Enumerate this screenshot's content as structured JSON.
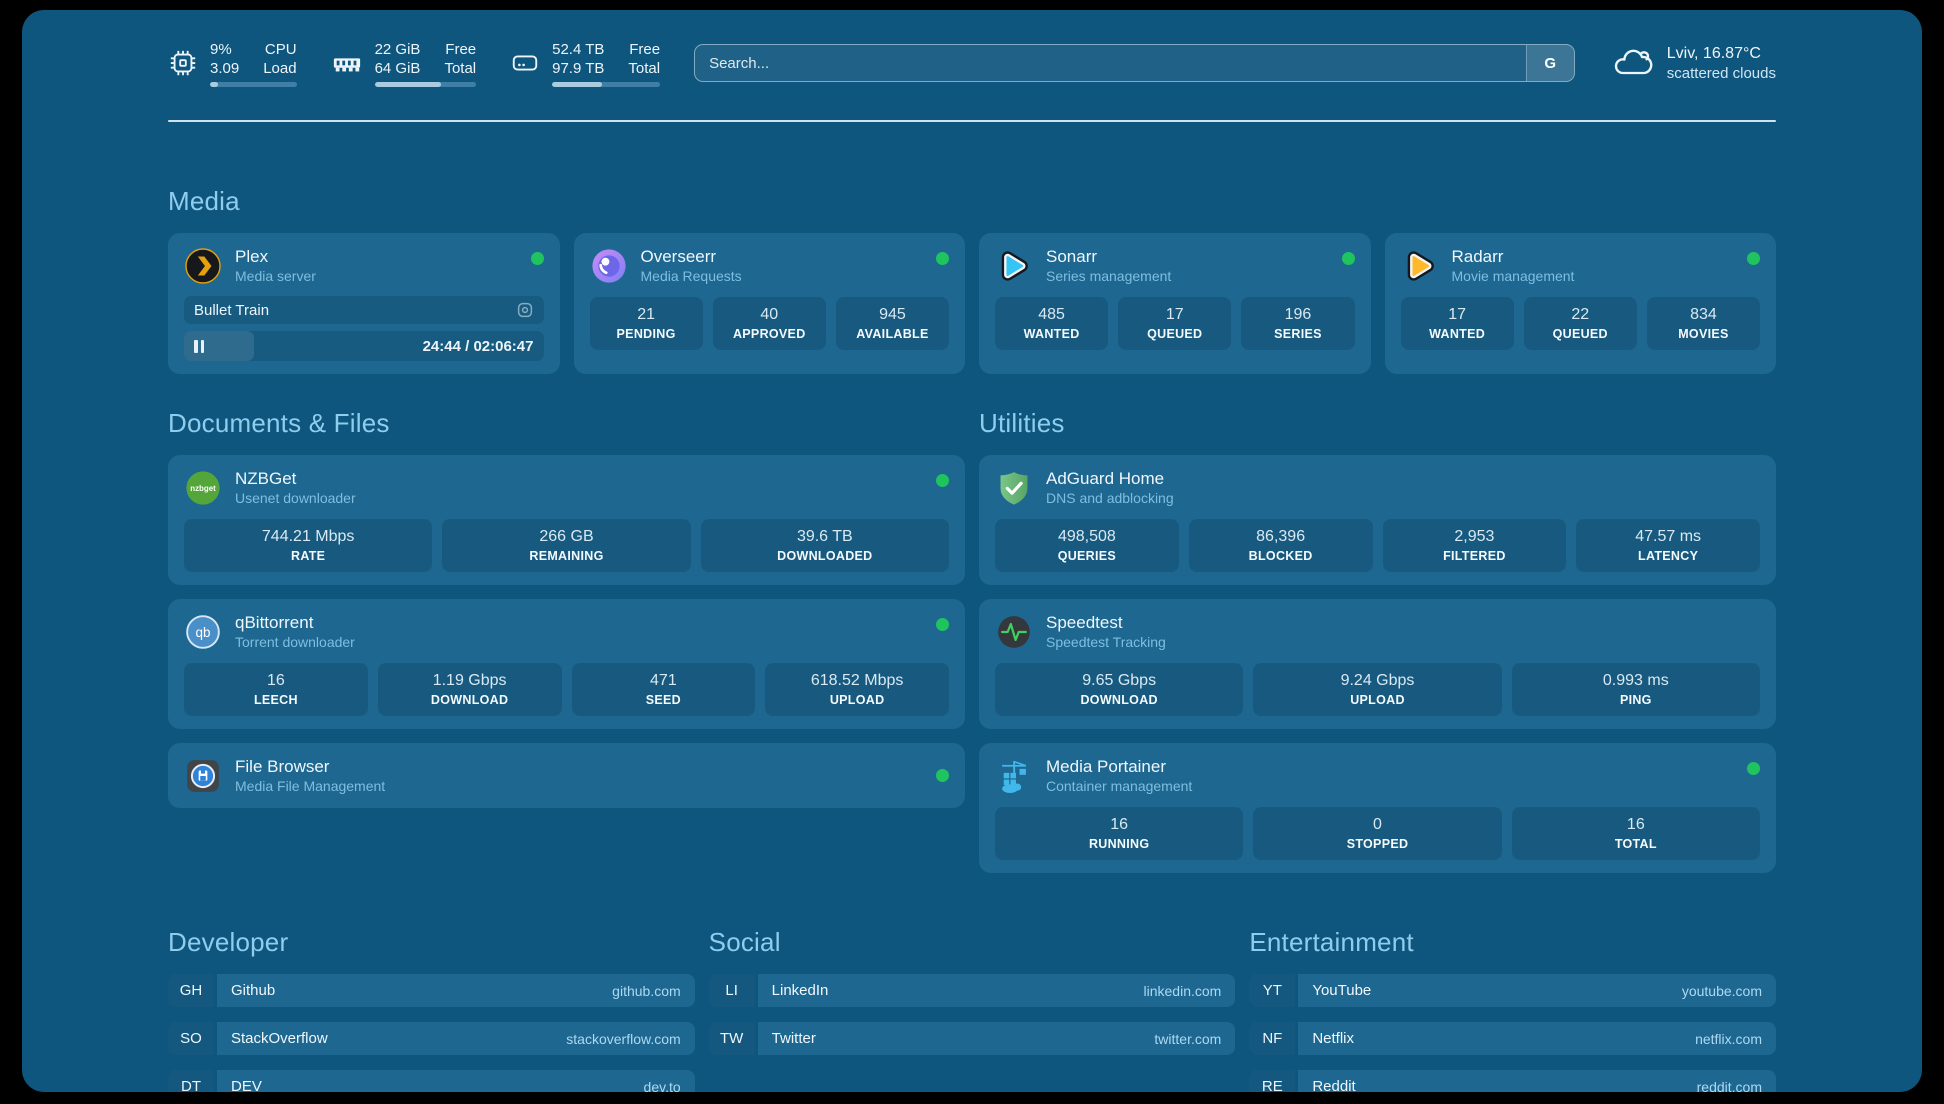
{
  "header": {
    "stats": [
      {
        "values": [
          "9%",
          "3.09"
        ],
        "labels": [
          "CPU",
          "Load"
        ],
        "progress": 9
      },
      {
        "values": [
          "22 GiB",
          "64 GiB"
        ],
        "labels": [
          "Free",
          "Total"
        ],
        "progress": 65
      },
      {
        "values": [
          "52.4 TB",
          "97.9 TB"
        ],
        "labels": [
          "Free",
          "Total"
        ],
        "progress": 46
      }
    ],
    "search": {
      "placeholder": "Search...",
      "button_label": "G"
    },
    "weather": {
      "summary": "Lviv, 16.87°C",
      "condition": "scattered clouds"
    }
  },
  "media": {
    "title": "Media",
    "plex": {
      "name": "Plex",
      "subtitle": "Media server",
      "now_playing": "Bullet Train",
      "time": "24:44 / 02:06:47",
      "progress": 19.5
    },
    "overseerr": {
      "name": "Overseerr",
      "subtitle": "Media Requests",
      "stats": [
        {
          "value": "21",
          "label": "PENDING"
        },
        {
          "value": "40",
          "label": "APPROVED"
        },
        {
          "value": "945",
          "label": "AVAILABLE"
        }
      ]
    },
    "sonarr": {
      "name": "Sonarr",
      "subtitle": "Series management",
      "stats": [
        {
          "value": "485",
          "label": "WANTED"
        },
        {
          "value": "17",
          "label": "QUEUED"
        },
        {
          "value": "196",
          "label": "SERIES"
        }
      ]
    },
    "radarr": {
      "name": "Radarr",
      "subtitle": "Movie management",
      "stats": [
        {
          "value": "17",
          "label": "WANTED"
        },
        {
          "value": "22",
          "label": "QUEUED"
        },
        {
          "value": "834",
          "label": "MOVIES"
        }
      ]
    }
  },
  "documents": {
    "title": "Documents & Files",
    "nzbget": {
      "name": "NZBGet",
      "subtitle": "Usenet downloader",
      "stats": [
        {
          "value": "744.21 Mbps",
          "label": "RATE"
        },
        {
          "value": "266 GB",
          "label": "REMAINING"
        },
        {
          "value": "39.6 TB",
          "label": "DOWNLOADED"
        }
      ]
    },
    "qbittorrent": {
      "name": "qBittorrent",
      "subtitle": "Torrent downloader",
      "stats": [
        {
          "value": "16",
          "label": "LEECH"
        },
        {
          "value": "1.19 Gbps",
          "label": "DOWNLOAD"
        },
        {
          "value": "471",
          "label": "SEED"
        },
        {
          "value": "618.52 Mbps",
          "label": "UPLOAD"
        }
      ]
    },
    "filebrowser": {
      "name": "File Browser",
      "subtitle": "Media File Management"
    }
  },
  "utilities": {
    "title": "Utilities",
    "adguard": {
      "name": "AdGuard Home",
      "subtitle": "DNS and adblocking",
      "stats": [
        {
          "value": "498,508",
          "label": "QUERIES"
        },
        {
          "value": "86,396",
          "label": "BLOCKED"
        },
        {
          "value": "2,953",
          "label": "FILTERED"
        },
        {
          "value": "47.57 ms",
          "label": "LATENCY"
        }
      ]
    },
    "speedtest": {
      "name": "Speedtest",
      "subtitle": "Speedtest Tracking",
      "stats": [
        {
          "value": "9.65 Gbps",
          "label": "DOWNLOAD"
        },
        {
          "value": "9.24 Gbps",
          "label": "UPLOAD"
        },
        {
          "value": "0.993 ms",
          "label": "PING"
        }
      ]
    },
    "portainer": {
      "name": "Media Portainer",
      "subtitle": "Container management",
      "stats": [
        {
          "value": "16",
          "label": "RUNNING"
        },
        {
          "value": "0",
          "label": "STOPPED"
        },
        {
          "value": "16",
          "label": "TOTAL"
        }
      ]
    }
  },
  "links": {
    "developer": {
      "title": "Developer",
      "items": [
        {
          "abbr": "GH",
          "name": "Github",
          "url": "github.com"
        },
        {
          "abbr": "SO",
          "name": "StackOverflow",
          "url": "stackoverflow.com"
        },
        {
          "abbr": "DT",
          "name": "DEV",
          "url": "dev.to"
        }
      ]
    },
    "social": {
      "title": "Social",
      "items": [
        {
          "abbr": "LI",
          "name": "LinkedIn",
          "url": "linkedin.com"
        },
        {
          "abbr": "TW",
          "name": "Twitter",
          "url": "twitter.com"
        }
      ]
    },
    "entertainment": {
      "title": "Entertainment",
      "items": [
        {
          "abbr": "YT",
          "name": "YouTube",
          "url": "youtube.com"
        },
        {
          "abbr": "NF",
          "name": "Netflix",
          "url": "netflix.com"
        },
        {
          "abbr": "RE",
          "name": "Reddit",
          "url": "reddit.com"
        }
      ]
    }
  },
  "colors": {
    "status_online": "#1FC45F",
    "accent": "#8FCDEE",
    "background": "#0E567E",
    "card": "#1D6791"
  }
}
